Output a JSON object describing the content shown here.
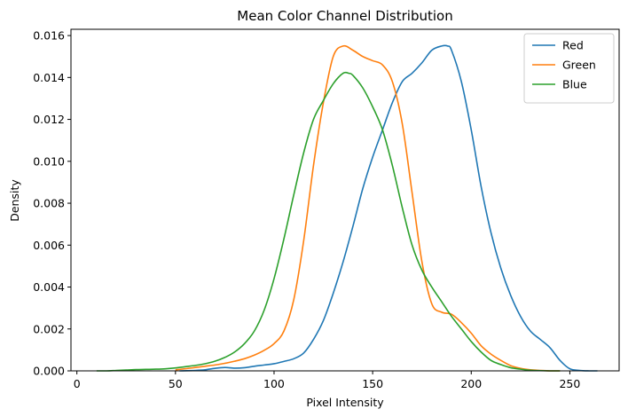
{
  "chart_data": {
    "type": "line",
    "title": "Mean Color Channel Distribution",
    "xlabel": "Pixel Intensity",
    "ylabel": "Density",
    "xlim": [
      -3,
      275
    ],
    "ylim": [
      0,
      0.0163
    ],
    "xticks": [
      0,
      50,
      100,
      150,
      200,
      250
    ],
    "yticks": [
      0.0,
      0.002,
      0.004,
      0.006,
      0.008,
      0.01,
      0.012,
      0.014,
      0.016
    ],
    "ytick_labels": [
      "0.000",
      "0.002",
      "0.004",
      "0.006",
      "0.008",
      "0.010",
      "0.012",
      "0.014",
      "0.016"
    ],
    "xtick_labels": [
      "0",
      "50",
      "100",
      "150",
      "200",
      "250"
    ],
    "grid": false,
    "legend_position": "top-right",
    "series": [
      {
        "name": "Red",
        "color": "#1f77b4",
        "x": [
          52,
          60,
          65,
          70,
          75,
          80,
          85,
          90,
          95,
          100,
          105,
          110,
          115,
          120,
          125,
          130,
          135,
          140,
          145,
          150,
          155,
          160,
          165,
          170,
          175,
          180,
          185,
          188,
          190,
          195,
          200,
          205,
          210,
          215,
          220,
          225,
          230,
          235,
          240,
          245,
          250,
          255,
          260,
          264
        ],
        "y": [
          0.0,
          2e-05,
          5e-05,
          0.00012,
          0.00016,
          0.00013,
          0.00015,
          0.00022,
          0.00028,
          0.00034,
          0.00045,
          0.00058,
          0.00085,
          0.0015,
          0.0024,
          0.0037,
          0.0052,
          0.0069,
          0.0087,
          0.0102,
          0.0115,
          0.0128,
          0.0138,
          0.0142,
          0.0147,
          0.0153,
          0.0155,
          0.0155,
          0.0153,
          0.0138,
          0.0115,
          0.0088,
          0.0066,
          0.0049,
          0.0036,
          0.0026,
          0.0019,
          0.0015,
          0.0011,
          0.0005,
          0.0001,
          2e-05,
          0.0,
          0.0
        ]
      },
      {
        "name": "Green",
        "color": "#ff7f0e",
        "x": [
          50,
          55,
          60,
          65,
          70,
          75,
          80,
          85,
          90,
          95,
          100,
          105,
          110,
          115,
          120,
          125,
          130,
          135,
          140,
          145,
          150,
          155,
          160,
          165,
          170,
          175,
          180,
          185,
          190,
          195,
          200,
          205,
          210,
          215,
          220,
          225,
          230,
          235,
          240,
          245
        ],
        "y": [
          5e-05,
          0.0001,
          0.00016,
          0.00022,
          0.00028,
          0.00036,
          0.00046,
          0.00058,
          0.00075,
          0.00098,
          0.0013,
          0.0019,
          0.0034,
          0.0062,
          0.0098,
          0.0128,
          0.015,
          0.0155,
          0.0153,
          0.015,
          0.0148,
          0.0146,
          0.0138,
          0.0118,
          0.0085,
          0.0052,
          0.0032,
          0.0028,
          0.0027,
          0.0023,
          0.0018,
          0.0012,
          0.0008,
          0.0005,
          0.00025,
          0.00012,
          5e-05,
          2e-05,
          0.0,
          0.0
        ]
      },
      {
        "name": "Blue",
        "color": "#2ca02c",
        "x": [
          10,
          15,
          20,
          25,
          30,
          35,
          40,
          45,
          50,
          55,
          60,
          65,
          70,
          75,
          80,
          85,
          90,
          95,
          100,
          105,
          110,
          115,
          120,
          125,
          130,
          135,
          138,
          140,
          145,
          150,
          155,
          160,
          165,
          170,
          175,
          180,
          185,
          190,
          195,
          200,
          205,
          210,
          215,
          220,
          225,
          230,
          235,
          240,
          245
        ],
        "y": [
          0.0,
          0.0,
          2e-05,
          4e-05,
          6e-05,
          7e-05,
          8e-05,
          0.0001,
          0.00014,
          0.0002,
          0.00026,
          0.00034,
          0.00046,
          0.00064,
          0.0009,
          0.0013,
          0.0019,
          0.0029,
          0.0044,
          0.0063,
          0.0084,
          0.0104,
          0.012,
          0.0129,
          0.0137,
          0.0142,
          0.0142,
          0.0141,
          0.0135,
          0.0126,
          0.0115,
          0.0098,
          0.0078,
          0.006,
          0.0048,
          0.004,
          0.0033,
          0.0026,
          0.002,
          0.0014,
          0.0009,
          0.0005,
          0.0003,
          0.00015,
          8e-05,
          3e-05,
          1e-05,
          0.0,
          0.0
        ]
      }
    ]
  }
}
